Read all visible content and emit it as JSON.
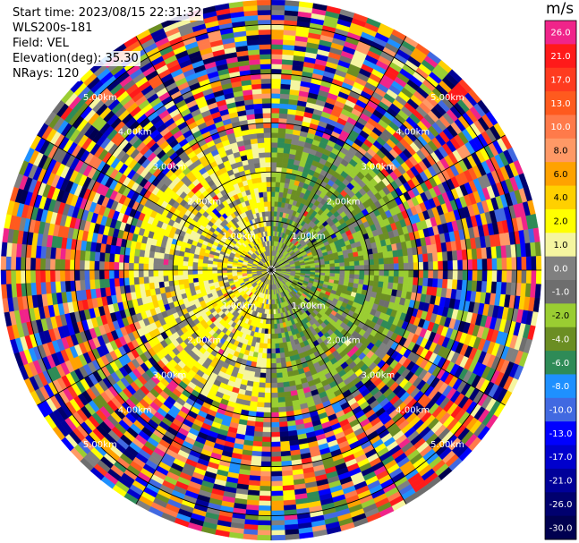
{
  "header": {
    "start_time": "Start time: 2023/08/15 22:31:32",
    "instrument": "WLS200s-181",
    "field": "Field: VEL",
    "elevation": "Elevation(deg): 35.30",
    "nrays": "NRays: 120"
  },
  "colorbar": {
    "unit": "m/s",
    "entries": [
      {
        "label": "26.0",
        "color": "#f0248a"
      },
      {
        "label": "21.0",
        "color": "#ff1a1a"
      },
      {
        "label": "17.0",
        "color": "#ff3b1f"
      },
      {
        "label": "13.0",
        "color": "#ff5a1e"
      },
      {
        "label": "10.0",
        "color": "#ff7a4a"
      },
      {
        "label": "8.0",
        "color": "#ff9966"
      },
      {
        "label": "6.0",
        "color": "#ffa200"
      },
      {
        "label": "4.0",
        "color": "#ffd000"
      },
      {
        "label": "2.0",
        "color": "#ffff00"
      },
      {
        "label": "1.0",
        "color": "#f5f5a0"
      },
      {
        "label": "0.0",
        "color": "#808080"
      },
      {
        "label": "-1.0",
        "color": "#6e6e6e"
      },
      {
        "label": "-2.0",
        "color": "#9acd32"
      },
      {
        "label": "-4.0",
        "color": "#6b8e23"
      },
      {
        "label": "-6.0",
        "color": "#2e8b57"
      },
      {
        "label": "-8.0",
        "color": "#1e90ff"
      },
      {
        "label": "-10.0",
        "color": "#4169e1"
      },
      {
        "label": "-13.0",
        "color": "#0000ff"
      },
      {
        "label": "-17.0",
        "color": "#0000cd"
      },
      {
        "label": "-21.0",
        "color": "#000099"
      },
      {
        "label": "-26.0",
        "color": "#00006e"
      },
      {
        "label": "-30.0",
        "color": "#000050"
      }
    ]
  },
  "chart_data": {
    "type": "heatmap",
    "subtype": "ppi-polar",
    "n_rays": 120,
    "range_rings_km": [
      1,
      2,
      3,
      4,
      5
    ],
    "ring_labels": [
      "1.00km",
      "2.00km",
      "3.00km",
      "4.00km",
      "5.00km"
    ],
    "max_range_km": 5.5,
    "near_range_pattern": {
      "west_half": "positive 1.0-4.0 m/s (yellow)",
      "east_half": "negative -2.0 to -6.0 m/s (green)",
      "beyond_3km": "noisy, all colors"
    }
  }
}
